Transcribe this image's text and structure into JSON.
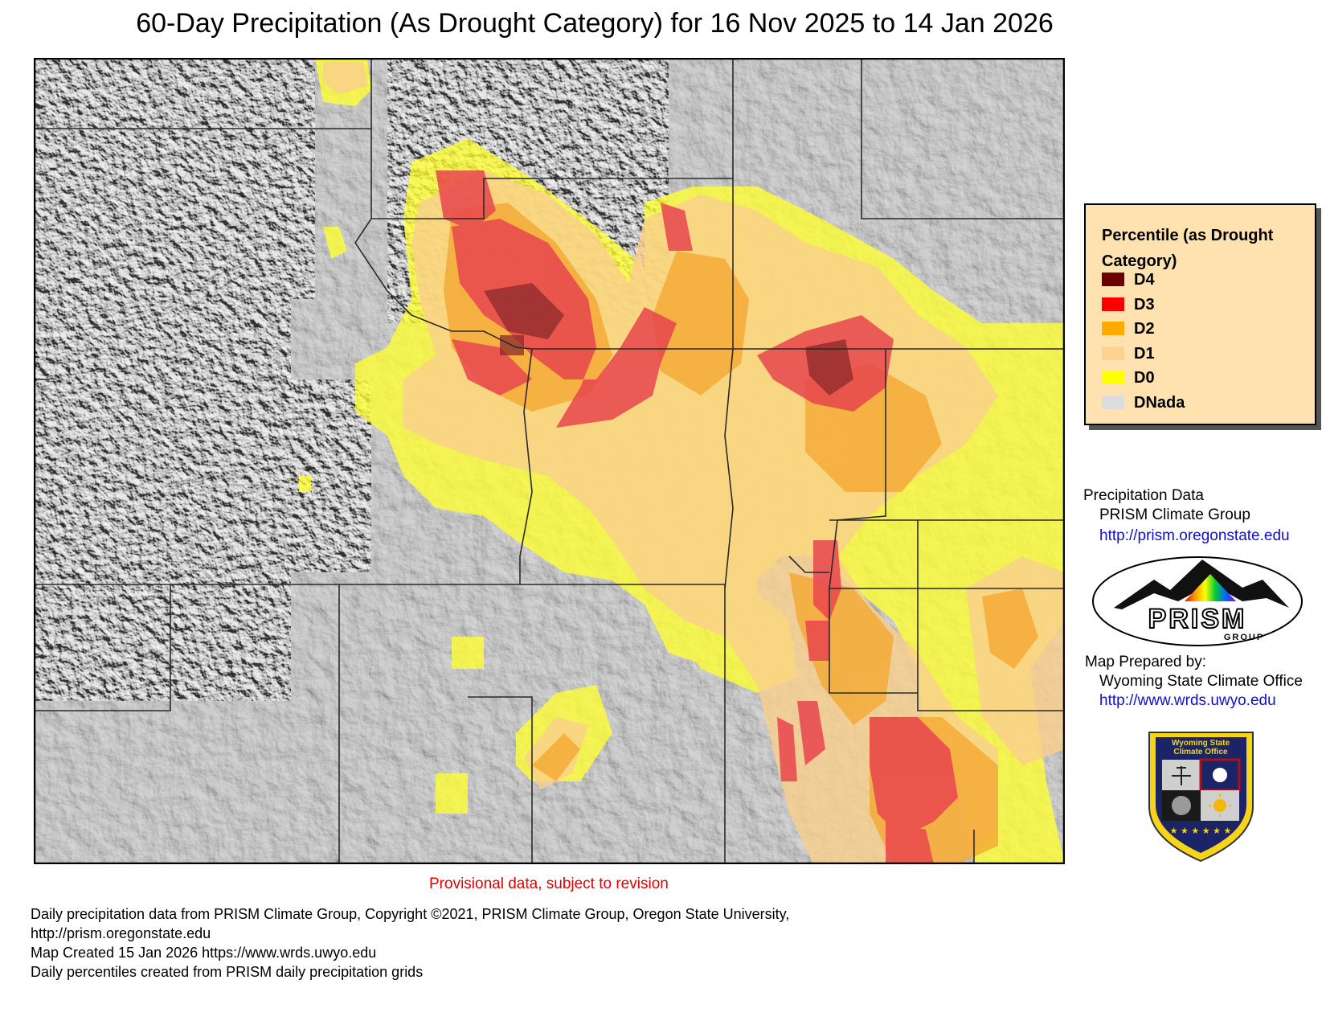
{
  "title": "60-Day Precipitation (As Drought Category) for 16 Nov 2025 to 14 Jan 2026",
  "legend": {
    "title": "Percentile (as Drought Category)",
    "items": [
      {
        "label": "D4",
        "color": "#6b0000"
      },
      {
        "label": "D3",
        "color": "#ff0000"
      },
      {
        "label": "D2",
        "color": "#ffaa00"
      },
      {
        "label": "D1",
        "color": "#fcd38f"
      },
      {
        "label": "D0",
        "color": "#ffff00"
      },
      {
        "label": "DNada",
        "color": "#dcdcdc"
      }
    ]
  },
  "credits": {
    "precip_heading": "Precipitation Data",
    "precip_source": "PRISM Climate Group",
    "precip_url": "http://prism.oregonstate.edu",
    "prepared_heading": "Map Prepared by:",
    "prepared_by": "Wyoming State Climate Office",
    "prepared_url": "http://www.wrds.uwyo.edu"
  },
  "logos": {
    "prism_text": "PRISM",
    "prism_sub": "GROUP",
    "wsco_line1": "Wyoming State",
    "wsco_line2": "Climate Office"
  },
  "provisional": "Provisional data, subject to revision",
  "footer": [
    "Daily precipitation data from PRISM Climate Group, Copyright ©2021, PRISM Climate Group, Oregon State University,",
    "http://prism.oregonstate.edu",
    "Map Created 15 Jan 2026 https://www.wrds.uwyo.edu",
    "Daily percentiles created from PRISM daily precipitation grids"
  ]
}
